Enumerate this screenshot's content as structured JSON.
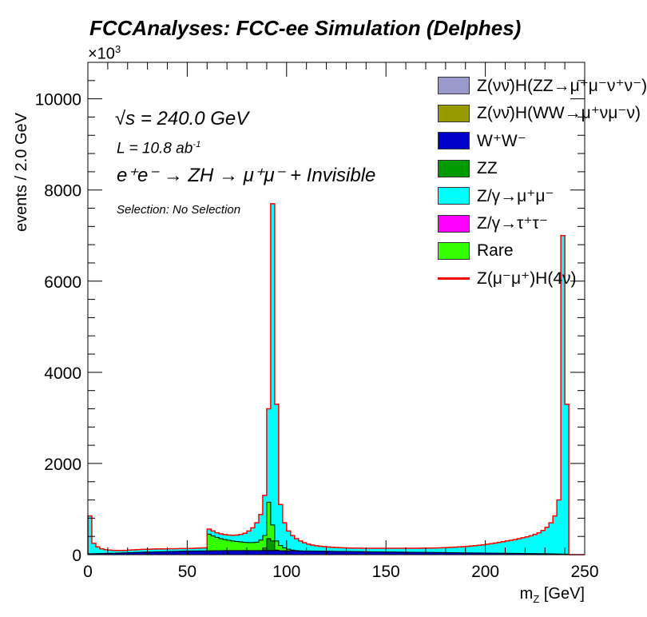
{
  "title": "FCCAnalyses: FCC-ee Simulation (Delphes)",
  "y_multiplier": "×10",
  "y_multiplier_exp": "3",
  "annotations": {
    "sqrts_prefix": "√",
    "sqrts": "s = 240.0 GeV",
    "lumi": "L = 10.8 ab",
    "lumi_sup": "-1",
    "process": "e⁺e⁻ → ZH → μ⁺μ⁻ + Invisible",
    "selection": "Selection: No Selection"
  },
  "legend": [
    {
      "label": "Z(νν̄)H(ZZ→μ⁺μ⁻ν⁺ν⁻)",
      "color": "#9999cc",
      "kind": "fill"
    },
    {
      "label": "Z(νν̄)H(WW→μ⁺νμ⁻ν)",
      "color": "#999900",
      "kind": "fill"
    },
    {
      "label": "W⁺W⁻",
      "color": "#0000cc",
      "kind": "fill"
    },
    {
      "label": "ZZ",
      "color": "#009900",
      "kind": "fill"
    },
    {
      "label": "Z/γ→μ⁺μ⁻",
      "color": "#00ffff",
      "kind": "fill"
    },
    {
      "label": "Z/γ→τ⁺τ⁻",
      "color": "#ff00ff",
      "kind": "fill"
    },
    {
      "label": "Rare",
      "color": "#33ff00",
      "kind": "fill"
    },
    {
      "label": "Z(μ⁻μ⁺)H(4ν)",
      "color": "#ff0000",
      "kind": "line"
    }
  ],
  "chart_data": {
    "type": "histogram",
    "xlabel": "m_Z [GeV]",
    "ylabel": "events / 2.0 GeV",
    "xlim": [
      0,
      250
    ],
    "ylim": [
      0,
      10800
    ],
    "y_ticks": [
      0,
      2000,
      4000,
      6000,
      8000,
      10000
    ],
    "x_ticks": [
      0,
      50,
      100,
      150,
      200,
      250
    ],
    "bin_width": 2.0,
    "stack_order": [
      "Z/γ→μ⁺μ⁻ (background)",
      "Rare",
      "ZZ",
      "W⁺W⁻"
    ],
    "total_stack": [
      [
        0,
        850
      ],
      [
        2,
        250
      ],
      [
        4,
        170
      ],
      [
        6,
        130
      ],
      [
        8,
        110
      ],
      [
        10,
        100
      ],
      [
        12,
        95
      ],
      [
        14,
        92
      ],
      [
        16,
        90
      ],
      [
        18,
        95
      ],
      [
        20,
        100
      ],
      [
        22,
        105
      ],
      [
        24,
        110
      ],
      [
        26,
        115
      ],
      [
        28,
        118
      ],
      [
        30,
        120
      ],
      [
        32,
        122
      ],
      [
        34,
        124
      ],
      [
        36,
        126
      ],
      [
        38,
        128
      ],
      [
        40,
        130
      ],
      [
        42,
        130
      ],
      [
        44,
        132
      ],
      [
        46,
        133
      ],
      [
        48,
        134
      ],
      [
        50,
        135
      ],
      [
        52,
        138
      ],
      [
        54,
        142
      ],
      [
        56,
        146
      ],
      [
        58,
        150
      ],
      [
        60,
        560
      ],
      [
        62,
        520
      ],
      [
        64,
        480
      ],
      [
        66,
        455
      ],
      [
        68,
        440
      ],
      [
        70,
        430
      ],
      [
        72,
        425
      ],
      [
        74,
        430
      ],
      [
        76,
        445
      ],
      [
        78,
        470
      ],
      [
        80,
        520
      ],
      [
        82,
        590
      ],
      [
        84,
        700
      ],
      [
        86,
        880
      ],
      [
        88,
        1300
      ],
      [
        90,
        3200
      ],
      [
        92,
        7700
      ],
      [
        94,
        3300
      ],
      [
        96,
        1100
      ],
      [
        98,
        700
      ],
      [
        100,
        520
      ],
      [
        102,
        420
      ],
      [
        104,
        350
      ],
      [
        106,
        300
      ],
      [
        108,
        260
      ],
      [
        110,
        230
      ],
      [
        112,
        210
      ],
      [
        114,
        195
      ],
      [
        116,
        185
      ],
      [
        118,
        175
      ],
      [
        120,
        168
      ],
      [
        122,
        162
      ],
      [
        124,
        157
      ],
      [
        126,
        153
      ],
      [
        128,
        150
      ],
      [
        130,
        147
      ],
      [
        132,
        145
      ],
      [
        134,
        143
      ],
      [
        136,
        142
      ],
      [
        138,
        141
      ],
      [
        140,
        140
      ],
      [
        142,
        140
      ],
      [
        144,
        140
      ],
      [
        146,
        140
      ],
      [
        148,
        140
      ],
      [
        150,
        140
      ],
      [
        152,
        140
      ],
      [
        154,
        140
      ],
      [
        156,
        140
      ],
      [
        158,
        140
      ],
      [
        160,
        140
      ],
      [
        162,
        140
      ],
      [
        164,
        141
      ],
      [
        166,
        142
      ],
      [
        168,
        143
      ],
      [
        170,
        144
      ],
      [
        172,
        145
      ],
      [
        174,
        147
      ],
      [
        176,
        150
      ],
      [
        178,
        153
      ],
      [
        180,
        156
      ],
      [
        182,
        160
      ],
      [
        184,
        165
      ],
      [
        186,
        170
      ],
      [
        188,
        175
      ],
      [
        190,
        182
      ],
      [
        192,
        190
      ],
      [
        194,
        198
      ],
      [
        196,
        207
      ],
      [
        198,
        217
      ],
      [
        200,
        228
      ],
      [
        202,
        240
      ],
      [
        204,
        255
      ],
      [
        206,
        270
      ],
      [
        208,
        285
      ],
      [
        210,
        300
      ],
      [
        212,
        315
      ],
      [
        214,
        330
      ],
      [
        216,
        350
      ],
      [
        218,
        370
      ],
      [
        220,
        390
      ],
      [
        222,
        415
      ],
      [
        224,
        445
      ],
      [
        226,
        480
      ],
      [
        228,
        530
      ],
      [
        230,
        600
      ],
      [
        232,
        700
      ],
      [
        234,
        850
      ],
      [
        236,
        1200
      ],
      [
        238,
        7000
      ],
      [
        240,
        3300
      ],
      [
        242,
        0
      ],
      [
        244,
        0
      ],
      [
        246,
        0
      ],
      [
        248,
        0
      ]
    ],
    "rare": [
      [
        58,
        0
      ],
      [
        60,
        450
      ],
      [
        62,
        410
      ],
      [
        64,
        380
      ],
      [
        66,
        350
      ],
      [
        68,
        330
      ],
      [
        70,
        315
      ],
      [
        72,
        300
      ],
      [
        74,
        290
      ],
      [
        76,
        280
      ],
      [
        78,
        270
      ],
      [
        80,
        265
      ],
      [
        82,
        265
      ],
      [
        84,
        275
      ],
      [
        86,
        320
      ],
      [
        88,
        420
      ],
      [
        90,
        1150
      ],
      [
        92,
        650
      ],
      [
        94,
        300
      ],
      [
        96,
        200
      ],
      [
        98,
        150
      ],
      [
        100,
        120
      ],
      [
        102,
        100
      ],
      [
        104,
        90
      ],
      [
        106,
        80
      ],
      [
        108,
        70
      ],
      [
        110,
        60
      ]
    ],
    "zz": [
      [
        86,
        50
      ],
      [
        88,
        150
      ],
      [
        90,
        350
      ],
      [
        92,
        300
      ],
      [
        94,
        100
      ],
      [
        96,
        40
      ]
    ],
    "ww": [
      [
        0,
        20
      ],
      [
        10,
        30
      ],
      [
        30,
        60
      ],
      [
        50,
        80
      ],
      [
        70,
        90
      ],
      [
        90,
        90
      ],
      [
        110,
        80
      ],
      [
        130,
        70
      ],
      [
        150,
        60
      ],
      [
        170,
        50
      ],
      [
        190,
        40
      ],
      [
        210,
        30
      ],
      [
        230,
        20
      ],
      [
        240,
        10
      ]
    ]
  }
}
